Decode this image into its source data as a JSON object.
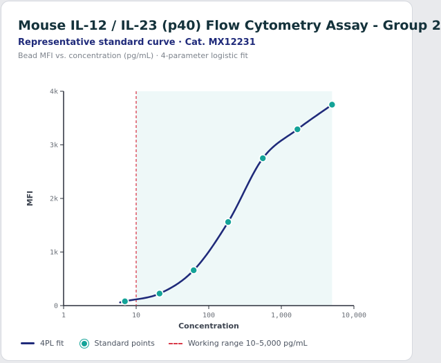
{
  "title": "Mouse IL-12 / IL-23 (p40) Flow Cytometry Assay - Group 2",
  "subtitle": "Representative standard curve · Cat. MX12231",
  "caption": "Bead MFI vs. concentration (pg/mL) · 4-parameter logistic fit",
  "colors": {
    "fit_line": "#1f2a7a",
    "points": "#14a398",
    "range_line": "#d83a4a",
    "range_fill": "#eef8f8"
  },
  "chart_data": {
    "type": "scatter",
    "x_scale": "log",
    "xlabel": "Concentration",
    "ylabel": "MFI",
    "xlim": [
      1,
      10000
    ],
    "ylim": [
      0,
      4000
    ],
    "x_ticks": [
      1,
      10,
      100,
      1000,
      10000
    ],
    "x_tick_labels": [
      "1",
      "10",
      "100",
      "1,000",
      "10,000"
    ],
    "y_ticks": [
      0,
      1000,
      2000,
      3000,
      4000
    ],
    "y_tick_labels": [
      "0",
      "1k",
      "2k",
      "3k",
      "4k"
    ],
    "series": [
      {
        "name": "Standard points",
        "kind": "scatter",
        "x": [
          7,
          21,
          62,
          185,
          556,
          1667,
          5000
        ],
        "y": [
          80,
          225,
          660,
          1560,
          2750,
          3290,
          3750
        ]
      },
      {
        "name": "4PL fit",
        "kind": "line",
        "x_range": [
          6,
          5000
        ]
      }
    ],
    "reference_lines": [
      {
        "label": "Working range 10–5,000 pg/mL",
        "x": 10,
        "shaded_range": [
          10,
          5000
        ]
      }
    ],
    "legend_position": "bottom-left",
    "grid": false
  },
  "legend": {
    "fit_label": "4PL fit",
    "points_label": "Standard points",
    "range_label": "Working range 10–5,000 pg/mL"
  }
}
